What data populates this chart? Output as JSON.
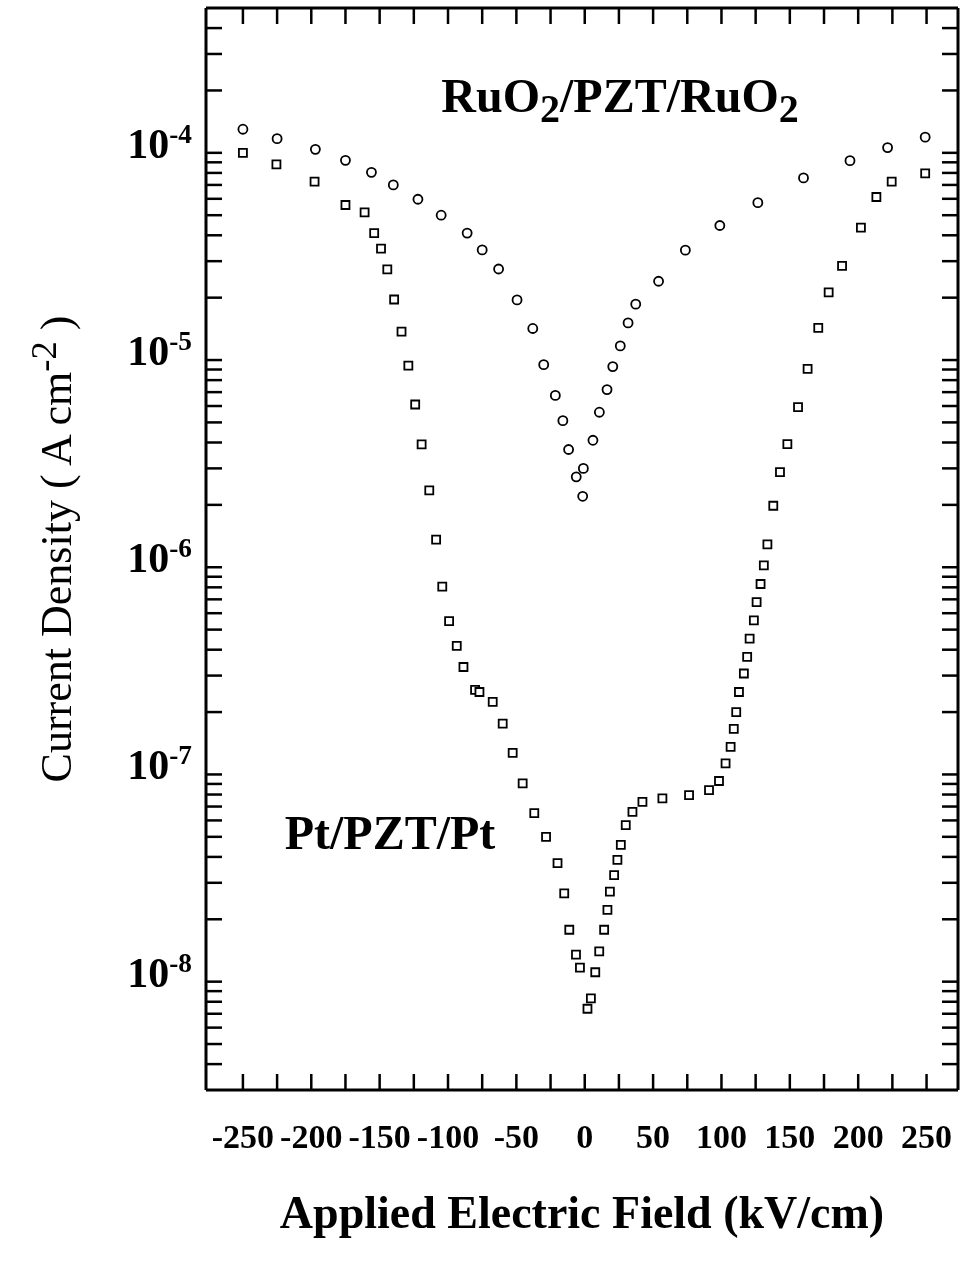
{
  "chart_data": {
    "type": "scatter",
    "xlabel": "Applied Electric Field (kV/cm)",
    "ylabel": "Current Density ( A cm$^{-2}$ )",
    "log": "y",
    "legend": "bottom left",
    "xlim": [
      -277,
      273
    ],
    "ylim": [
      3e-09,
      0.0005
    ],
    "xticks": [
      -250,
      {
        "value": -225,
        "label": null
      },
      -200,
      {
        "value": -175,
        "label": null
      },
      -150,
      {
        "value": -125,
        "label": null
      },
      -100,
      {
        "value": -75,
        "label": null
      },
      -50,
      {
        "value": -25,
        "label": null
      },
      0,
      {
        "value": 25,
        "label": null
      },
      50,
      {
        "value": 75,
        "label": null
      },
      100,
      {
        "value": 125,
        "label": null
      },
      150,
      {
        "value": 175,
        "label": null
      },
      200,
      {
        "value": 225,
        "label": null
      },
      250
    ],
    "yticks": [
      {
        "value": 4e-09,
        "label": null
      },
      {
        "value": 5e-09,
        "label": null
      },
      {
        "value": 6e-09,
        "label": null
      },
      {
        "value": 7e-09,
        "label": null
      },
      {
        "value": 8e-09,
        "label": null
      },
      {
        "value": 9e-09,
        "label": null
      },
      {
        "value": 1e-08,
        "label": "10$^{-8}$"
      },
      {
        "value": 2e-08,
        "label": null
      },
      {
        "value": 3e-08,
        "label": null
      },
      {
        "value": 4e-08,
        "label": null
      },
      {
        "value": 5e-08,
        "label": null
      },
      {
        "value": 6e-08,
        "label": null
      },
      {
        "value": 7e-08,
        "label": null
      },
      {
        "value": 8e-08,
        "label": null
      },
      {
        "value": 9e-08,
        "label": null
      },
      {
        "value": 1e-07,
        "label": "10$^{-7}$"
      },
      {
        "value": 2e-07,
        "label": null
      },
      {
        "value": 3e-07,
        "label": null
      },
      {
        "value": 4e-07,
        "label": null
      },
      {
        "value": 5e-07,
        "label": null
      },
      {
        "value": 6e-07,
        "label": null
      },
      {
        "value": 7e-07,
        "label": null
      },
      {
        "value": 8e-07,
        "label": null
      },
      {
        "value": 9e-07,
        "label": null
      },
      {
        "value": 1e-06,
        "label": "10$^{-6}$"
      },
      {
        "value": 2e-06,
        "label": null
      },
      {
        "value": 3e-06,
        "label": null
      },
      {
        "value": 4e-06,
        "label": null
      },
      {
        "value": 5e-06,
        "label": null
      },
      {
        "value": 6e-06,
        "label": null
      },
      {
        "value": 7e-06,
        "label": null
      },
      {
        "value": 8e-06,
        "label": null
      },
      {
        "value": 9e-06,
        "label": null
      },
      {
        "value": 1e-05,
        "label": "10$^{-5}$"
      },
      {
        "value": 2e-05,
        "label": null
      },
      {
        "value": 3e-05,
        "label": null
      },
      {
        "value": 4e-05,
        "label": null
      },
      {
        "value": 5e-05,
        "label": null
      },
      {
        "value": 6e-05,
        "label": null
      },
      {
        "value": 7e-05,
        "label": null
      },
      {
        "value": 8e-05,
        "label": null
      },
      {
        "value": 9e-05,
        "label": null
      },
      {
        "value": 0.0001,
        "label": "10$^{-4}$"
      },
      {
        "value": 0.0002,
        "label": null
      },
      {
        "value": 0.0003,
        "label": null
      },
      {
        "value": 0.0004,
        "label": null
      }
    ],
    "series": [
      {
        "name": "RuO$_{2}$/PZT/RuO$_{2}$",
        "color": "#000000",
        "marker": "circle",
        "x": [
          -250,
          -225,
          -197,
          -175,
          -156,
          -140,
          -122,
          -105,
          -86,
          -75,
          -63,
          -49.5,
          -38,
          -30,
          -21.5,
          -16,
          -11.8,
          -6.2,
          -1.5,
          -1,
          6,
          10.7,
          16.3,
          20.5,
          26,
          31.7,
          37.3,
          54,
          73.6,
          98.8,
          126.6,
          160,
          194,
          221.5,
          249
        ],
        "values": [
          0.00013,
          0.000117,
          0.000104,
          9.2e-05,
          8.05e-05,
          7e-05,
          5.97e-05,
          5e-05,
          4.1e-05,
          3.4e-05,
          2.75e-05,
          1.95e-05,
          1.42e-05,
          9.5e-06,
          6.75e-06,
          5.1e-06,
          3.7e-06,
          2.73e-06,
          2.2e-06,
          3e-06,
          4.1e-06,
          5.6e-06,
          7.2e-06,
          9.3e-06,
          1.17e-05,
          1.51e-05,
          1.86e-05,
          2.4e-05,
          3.39e-05,
          4.46e-05,
          5.75e-05,
          7.57e-05,
          9.17e-05,
          0.000106,
          0.000119
        ]
      },
      {
        "name": "Pt/PZT/Pt",
        "color": "#000000",
        "marker": "square",
        "x": [
          -250,
          -225.5,
          -197.6,
          -175,
          -161,
          -154,
          -149,
          -144.4,
          -139.4,
          -134,
          -129,
          -124,
          -119.3,
          -113.7,
          -108.7,
          -104.2,
          -99.2,
          -93.6,
          -88.7,
          -80.2,
          -77,
          -67.3,
          -60,
          -52.7,
          -45.4,
          -36.9,
          -28.3,
          -19.9,
          -15,
          -11.3,
          -6.4,
          -3.5,
          2,
          4.5,
          7.7,
          10.6,
          14.2,
          16.6,
          18.4,
          21.5,
          23.9,
          26.4,
          30,
          34.9,
          42.2,
          56.8,
          76.3,
          90.9,
          98.2,
          103,
          106.7,
          109,
          110.8,
          112.8,
          116.4,
          118.8,
          120.6,
          123.7,
          125.7,
          128.6,
          131,
          133.6,
          137.9,
          142.8,
          148.2,
          156,
          163,
          170.8,
          178.4,
          188.2,
          202,
          213.3,
          224.5,
          249
        ],
        "values": [
          0.0001,
          8.8e-05,
          7.26e-05,
          5.6e-05,
          5.16e-05,
          4.1e-05,
          3.45e-05,
          2.74e-05,
          1.96e-05,
          1.37e-05,
          9.4e-06,
          6.1e-06,
          3.92e-06,
          2.35e-06,
          1.36e-06,
          8.07e-07,
          5.5e-07,
          4.17e-07,
          3.3e-07,
          2.56e-07,
          2.5e-07,
          2.24e-07,
          1.76e-07,
          1.27e-07,
          9.06e-08,
          6.5e-08,
          5e-08,
          3.73e-08,
          2.67e-08,
          1.78e-08,
          1.35e-08,
          1.17e-08,
          7.4e-09,
          8.3e-09,
          1.11e-08,
          1.4e-08,
          1.78e-08,
          2.22e-08,
          2.72e-08,
          3.27e-08,
          3.87e-08,
          4.57e-08,
          5.7e-08,
          6.6e-08,
          7.38e-08,
          7.66e-08,
          7.94e-08,
          8.4e-08,
          9.3e-08,
          1.13e-07,
          1.36e-07,
          1.66e-07,
          2e-07,
          2.5e-07,
          3.07e-07,
          3.69e-07,
          4.52e-07,
          5.54e-07,
          6.78e-07,
          8.3e-07,
          1.02e-06,
          1.29e-06,
          1.98e-06,
          2.88e-06,
          3.93e-06,
          5.93e-06,
          9.06e-06,
          1.43e-05,
          2.12e-05,
          2.85e-05,
          4.36e-05,
          6.12e-05,
          7.26e-05,
          7.96e-05
        ]
      }
    ]
  }
}
